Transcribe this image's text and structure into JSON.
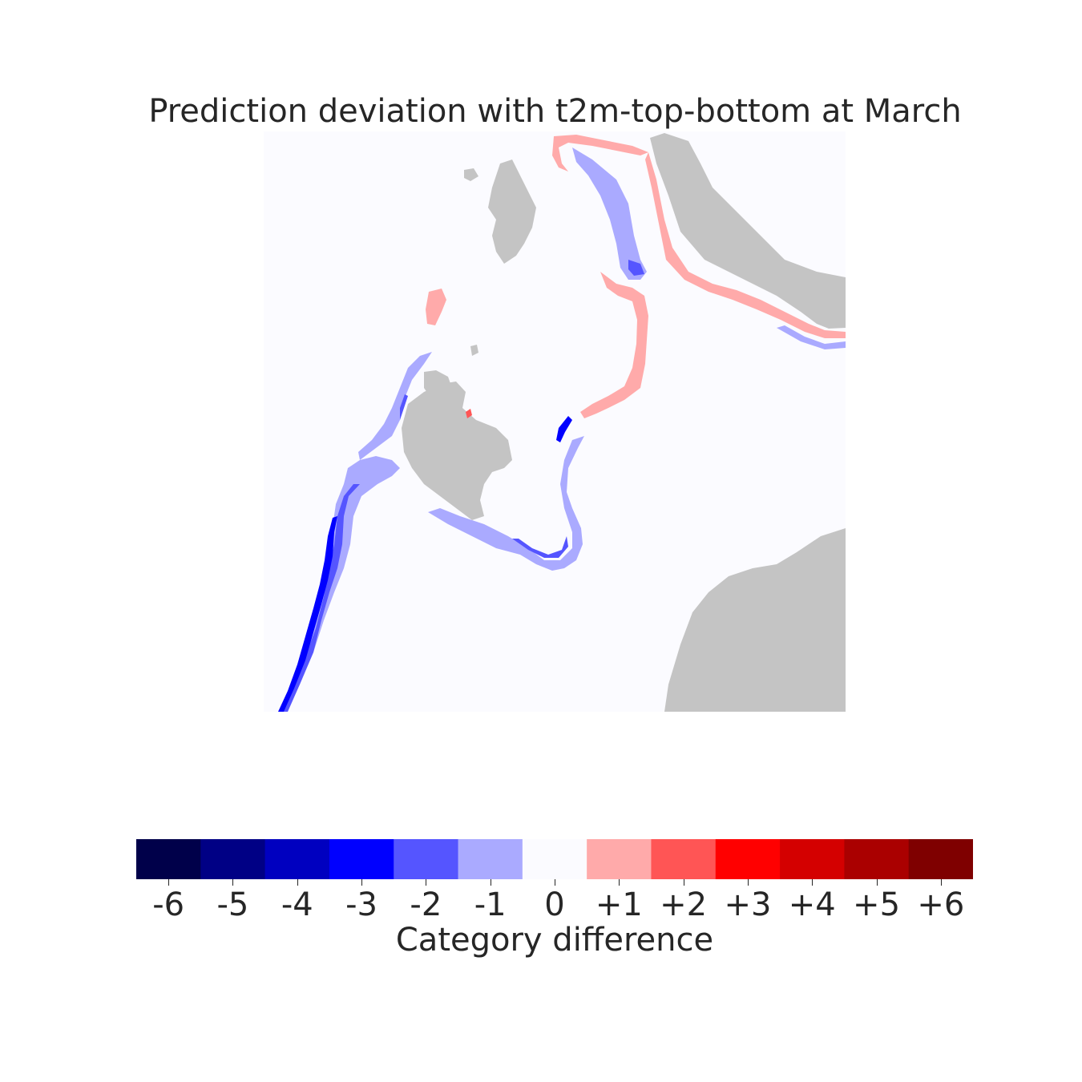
{
  "title": "Prediction deviation with t2m-top-bottom at March",
  "map": {
    "background_color": "#fbfbff",
    "land_color": "#c4c4c4"
  },
  "colorbar": {
    "label": "Category difference",
    "ticks": [
      "-6",
      "-5",
      "-4",
      "-3",
      "-2",
      "-1",
      "0",
      "+1",
      "+2",
      "+3",
      "+4",
      "+5",
      "+6"
    ],
    "colors": [
      "#00004a",
      "#000085",
      "#0000c0",
      "#0000ff",
      "#5555ff",
      "#aaaaff",
      "#fbfbff",
      "#ffaaaa",
      "#ff5555",
      "#ff0000",
      "#d40000",
      "#aa0000",
      "#7f0000"
    ]
  }
}
